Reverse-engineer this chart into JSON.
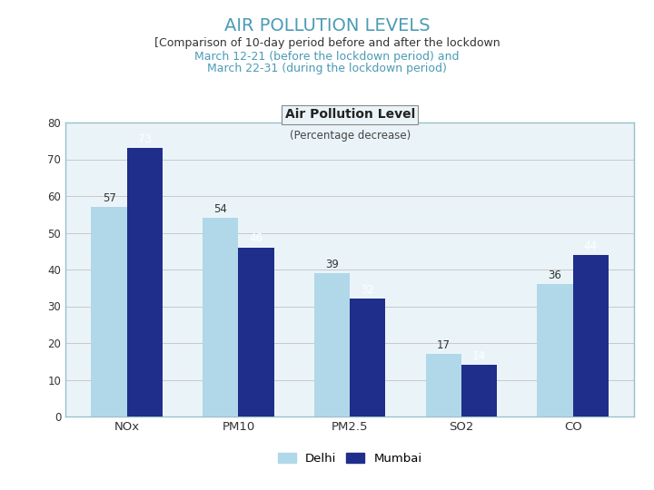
{
  "title": "AIR POLLUTION LEVELS",
  "subtitle_line1": "[Comparison of 10-day period before and after the lockdown",
  "subtitle_line2": "March 12-21 (before the lockdown period) and",
  "subtitle_line3": "March 22-31 (during the lockdown period)",
  "chart_title": "Air Pollution Level",
  "chart_subtitle": "(Percentage decrease)",
  "categories": [
    "NOx",
    "PM10",
    "PM2.5",
    "SO2",
    "CO"
  ],
  "delhi_values": [
    57,
    54,
    39,
    17,
    36
  ],
  "mumbai_values": [
    73,
    46,
    32,
    14,
    44
  ],
  "delhi_color": "#B0D8E8",
  "mumbai_color": "#1F2E8B",
  "ylim": [
    0,
    80
  ],
  "yticks": [
    0,
    10,
    20,
    30,
    40,
    50,
    60,
    70,
    80
  ],
  "title_color": "#4B9BB5",
  "subtitle_line1_color": "#333333",
  "subtitle_color": "#4B9BB5",
  "bar_chart_bg": "#EAF4F8",
  "chart_border_color": "#9BBFCC",
  "grid_color": "#C8C8C8",
  "title_fontsize": 14,
  "subtitle_fontsize": 9,
  "chart_title_fontsize": 10,
  "legend_delhi": "Delhi",
  "legend_mumbai": "Mumbai"
}
